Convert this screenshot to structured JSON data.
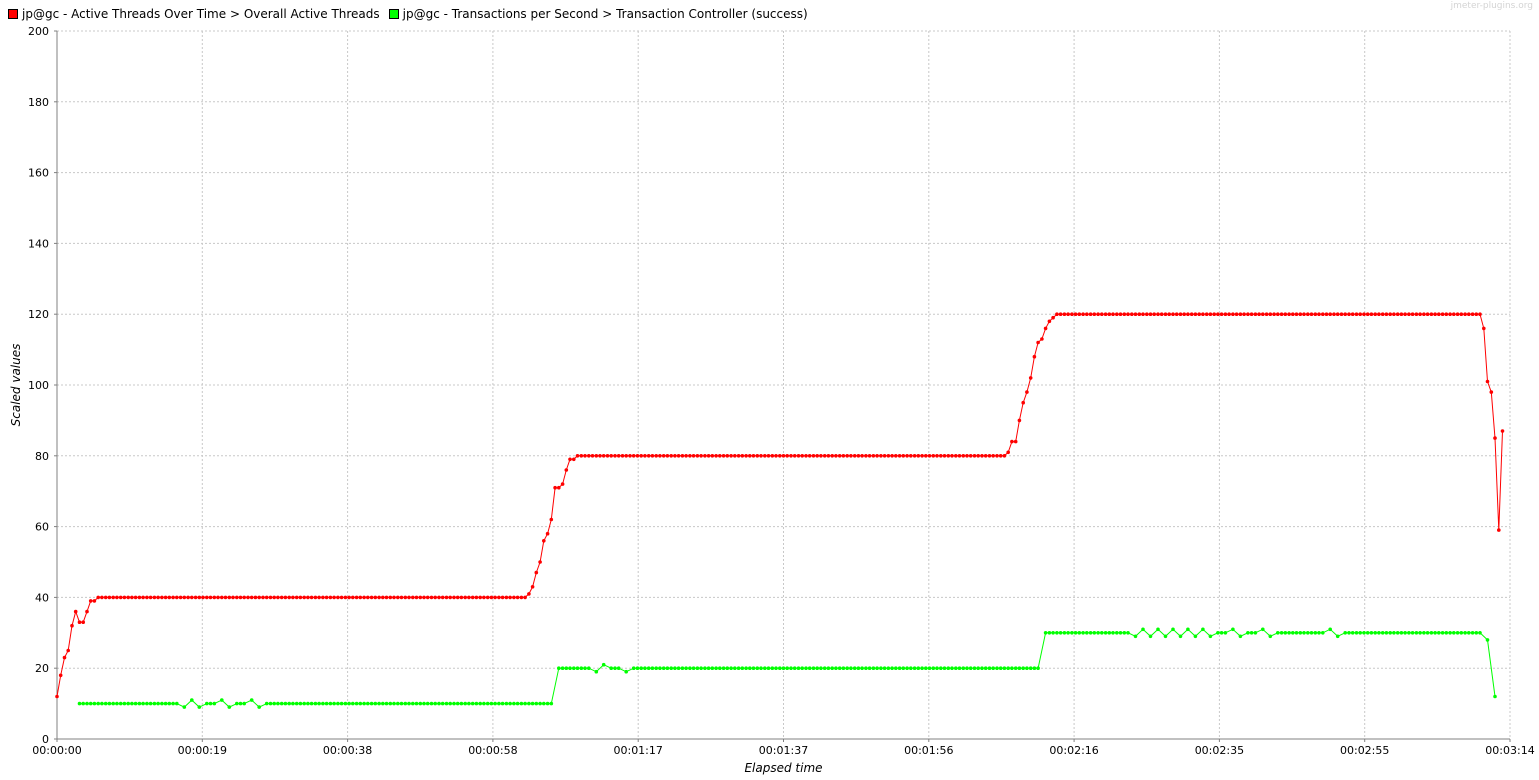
{
  "watermark": "jmeter-plugins.org",
  "chart_data": {
    "type": "line",
    "xlabel": "Elapsed time",
    "ylabel": "Scaled values",
    "ylim": [
      0,
      200
    ],
    "xlim_seconds": [
      0,
      194
    ],
    "y_ticks": [
      0,
      20,
      40,
      60,
      80,
      100,
      120,
      140,
      160,
      180,
      200
    ],
    "x_tick_labels": [
      "00:00:00",
      "00:00:19",
      "00:00:38",
      "00:00:58",
      "00:01:17",
      "00:01:37",
      "00:01:56",
      "00:02:16",
      "00:02:35",
      "00:02:55",
      "00:03:14"
    ],
    "x_tick_seconds": [
      0,
      19.4,
      38.8,
      58.2,
      77.6,
      97,
      116.4,
      135.8,
      155.2,
      174.6,
      194
    ],
    "grid": true,
    "legend_position": "top-left",
    "series": [
      {
        "name": "jp@gc - Active Threads Over Time > Overall Active Threads",
        "color": "#ff0000",
        "points": [
          [
            0,
            12
          ],
          [
            0.5,
            18
          ],
          [
            1,
            23
          ],
          [
            1.5,
            25
          ],
          [
            2,
            32
          ],
          [
            2.5,
            36
          ],
          [
            3,
            33
          ],
          [
            3.5,
            33
          ],
          [
            4,
            36
          ],
          [
            4.5,
            39
          ],
          [
            5,
            39
          ],
          [
            5.5,
            40
          ],
          [
            6,
            40
          ],
          [
            62.5,
            40
          ],
          [
            63,
            41
          ],
          [
            63.5,
            43
          ],
          [
            64,
            47
          ],
          [
            64.5,
            50
          ],
          [
            65,
            56
          ],
          [
            65.5,
            58
          ],
          [
            66,
            62
          ],
          [
            66.5,
            71
          ],
          [
            67,
            71
          ],
          [
            67.5,
            72
          ],
          [
            68,
            76
          ],
          [
            68.5,
            79
          ],
          [
            69,
            79
          ],
          [
            69.5,
            80
          ],
          [
            70,
            80
          ],
          [
            126.5,
            80
          ],
          [
            127,
            81
          ],
          [
            127.5,
            84
          ],
          [
            128,
            84
          ],
          [
            128.5,
            90
          ],
          [
            129,
            95
          ],
          [
            129.5,
            98
          ],
          [
            130,
            102
          ],
          [
            130.5,
            108
          ],
          [
            131,
            112
          ],
          [
            131.5,
            113
          ],
          [
            132,
            116
          ],
          [
            132.5,
            118
          ],
          [
            133,
            119
          ],
          [
            133.5,
            120
          ],
          [
            134,
            120
          ],
          [
            190,
            120
          ],
          [
            190.5,
            116
          ],
          [
            191,
            101
          ],
          [
            191.5,
            98
          ],
          [
            192,
            85
          ],
          [
            192.5,
            59
          ],
          [
            193,
            87
          ]
        ]
      },
      {
        "name": "jp@gc - Transactions per Second > Transaction Controller (success)",
        "color": "#00ff00",
        "points": [
          [
            3,
            10
          ],
          [
            16,
            10
          ],
          [
            17,
            9
          ],
          [
            18,
            11
          ],
          [
            19,
            9
          ],
          [
            20,
            10
          ],
          [
            21,
            10
          ],
          [
            22,
            11
          ],
          [
            23,
            9
          ],
          [
            24,
            10
          ],
          [
            25,
            10
          ],
          [
            26,
            11
          ],
          [
            27,
            9
          ],
          [
            28,
            10
          ],
          [
            66,
            10
          ],
          [
            67,
            20
          ],
          [
            71,
            20
          ],
          [
            72,
            19
          ],
          [
            73,
            21
          ],
          [
            74,
            20
          ],
          [
            75,
            20
          ],
          [
            76,
            19
          ],
          [
            77,
            20
          ],
          [
            131,
            20
          ],
          [
            132,
            30
          ],
          [
            143,
            30
          ],
          [
            144,
            29
          ],
          [
            145,
            31
          ],
          [
            146,
            29
          ],
          [
            147,
            31
          ],
          [
            148,
            29
          ],
          [
            149,
            31
          ],
          [
            150,
            29
          ],
          [
            151,
            31
          ],
          [
            152,
            29
          ],
          [
            153,
            31
          ],
          [
            154,
            29
          ],
          [
            155,
            30
          ],
          [
            156,
            30
          ],
          [
            157,
            31
          ],
          [
            158,
            29
          ],
          [
            159,
            30
          ],
          [
            160,
            30
          ],
          [
            161,
            31
          ],
          [
            162,
            29
          ],
          [
            163,
            30
          ],
          [
            169,
            30
          ],
          [
            170,
            31
          ],
          [
            171,
            29
          ],
          [
            172,
            30
          ],
          [
            190,
            30
          ],
          [
            191,
            28
          ],
          [
            192,
            12
          ]
        ]
      }
    ]
  }
}
